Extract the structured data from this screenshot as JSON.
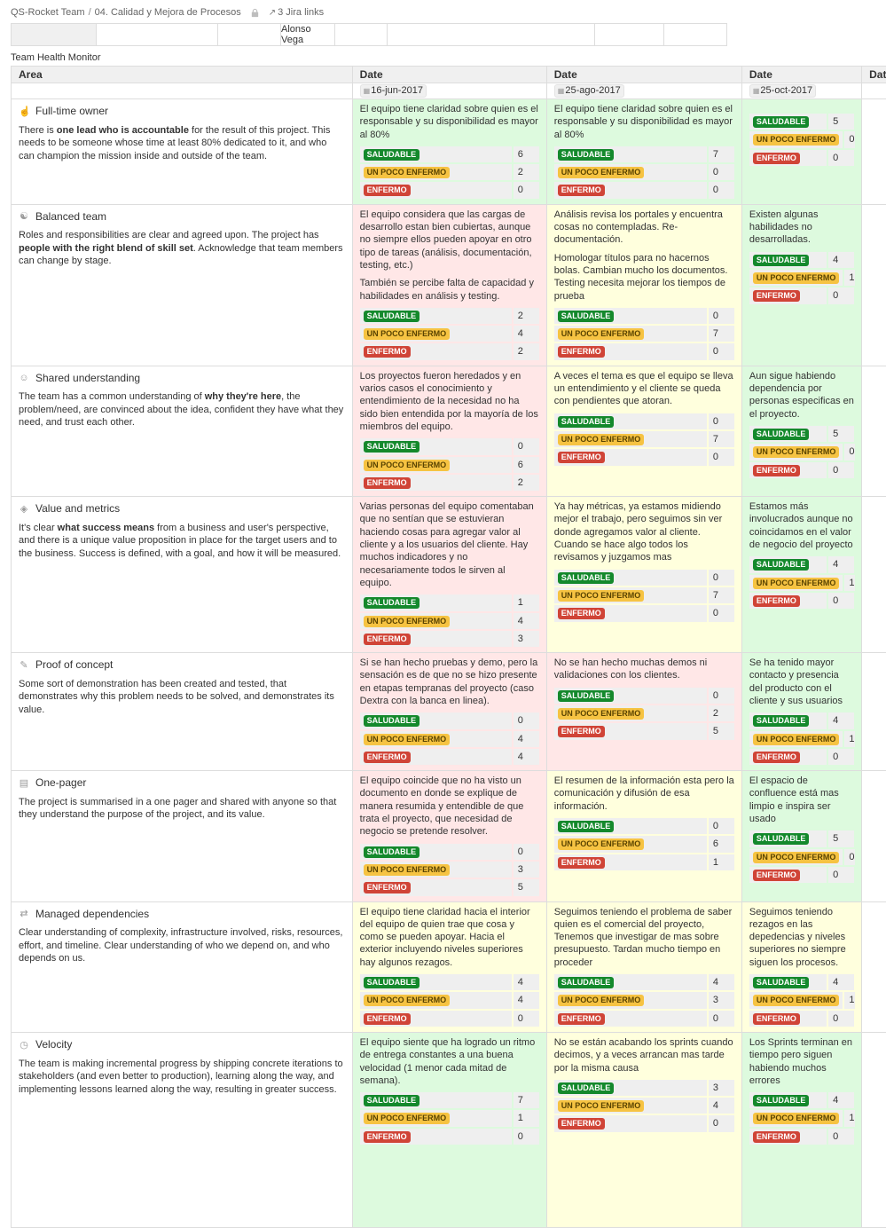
{
  "breadcrumb": {
    "space": "QS-Rocket Team",
    "separator": "/",
    "page": "04. Calidad y Mejora de Procesos",
    "jira_icon": "↗",
    "jira_links_label": "3 Jira links"
  },
  "top_table": {
    "cells": [
      "",
      "",
      "",
      "Alonso Vega",
      "",
      "",
      "",
      ""
    ]
  },
  "section_title": "Team Health Monitor",
  "health_table": {
    "area_header": "Area",
    "date_header": "Date",
    "dates": [
      "16-jun-2017",
      "25-ago-2017",
      "25-oct-2017",
      ""
    ],
    "statuses": [
      {
        "key": "healthy",
        "label": "SALUDABLE"
      },
      {
        "key": "warn",
        "label": "UN POCO ENFERMO"
      },
      {
        "key": "sick",
        "label": "ENFERMO"
      }
    ],
    "colors": {
      "lozenge_healthy_bg": "#14892c",
      "lozenge_healthy_text": "#ffffff",
      "lozenge_warn_bg": "#f6c342",
      "lozenge_warn_text": "#594300",
      "lozenge_sick_bg": "#d04437",
      "lozenge_sick_text": "#ffffff",
      "cell_green": "#ddfade",
      "cell_yellow": "#ffffdd",
      "cell_pink": "#ffe7e7",
      "cell_none": "#ffffff"
    },
    "rows": [
      {
        "icon_name": "full-time-owner-icon",
        "icon_glyph": "☝",
        "title": "Full-time owner",
        "desc_pre": "There is ",
        "desc_bold": "one lead who is accountable",
        "desc_post": " for the result of this project. This needs to be someone whose time at least 80% dedicated to it, and who can champion the mission inside and outside of the team.",
        "cells": [
          {
            "color": "green",
            "paragraphs": [
              "El equipo tiene claridad sobre quien es el responsable y su disponibilidad es mayor al 80%"
            ],
            "counts": [
              6,
              2,
              0
            ]
          },
          {
            "color": "green",
            "paragraphs": [
              "El equipo tiene claridad sobre quien es el responsable y su disponibilidad es mayor al 80%"
            ],
            "counts": [
              7,
              0,
              0
            ]
          },
          {
            "color": "green",
            "paragraphs": [],
            "counts": [
              5,
              0,
              0
            ]
          },
          {
            "color": "none",
            "paragraphs": [],
            "counts": null
          }
        ]
      },
      {
        "icon_name": "balanced-team-icon",
        "icon_glyph": "☯",
        "title": "Balanced team",
        "desc_pre": "Roles and responsibilities are clear and agreed upon. The project has ",
        "desc_bold": "people with the right blend of skill set",
        "desc_post": ". Acknowledge that team members can change by stage.",
        "cells": [
          {
            "color": "pink",
            "paragraphs": [
              "El equipo considera que las cargas de desarrollo estan bien cubiertas, aunque no siempre ellos pueden apoyar en otro tipo de tareas (análisis, documentación, testing, etc.)",
              "También se percibe falta de capacidad y habilidades en análisis y testing."
            ],
            "counts": [
              2,
              4,
              2
            ]
          },
          {
            "color": "yellow",
            "paragraphs": [
              "Análisis revisa los portales y encuentra cosas no contempladas. Re-documentación.",
              "Homologar títulos para no hacernos bolas. Cambian mucho los documentos. Testing necesita mejorar los tiempos de prueba"
            ],
            "counts": [
              0,
              7,
              0
            ]
          },
          {
            "color": "green",
            "paragraphs": [
              "Existen algunas habilidades no desarrolladas."
            ],
            "counts": [
              4,
              1,
              0
            ]
          },
          {
            "color": "none",
            "paragraphs": [],
            "counts": null
          }
        ]
      },
      {
        "icon_name": "shared-understanding-icon",
        "icon_glyph": "☺",
        "title": "Shared understanding",
        "desc_pre": "The team has a common understanding of ",
        "desc_bold": "why they're here",
        "desc_post": ", the problem/need, are convinced about the idea, confident they have what they need, and trust each other.",
        "cells": [
          {
            "color": "pink",
            "paragraphs": [
              "Los proyectos fueron heredados y en varios casos el conocimiento y entendimiento de la necesidad no ha sido bien entendida por la mayoría de los miembros del equipo."
            ],
            "counts": [
              0,
              6,
              2
            ]
          },
          {
            "color": "yellow",
            "paragraphs": [
              "A veces el tema es que el equipo se lleva un entendimiento y el cliente se queda con pendientes que atoran."
            ],
            "counts": [
              0,
              7,
              0
            ]
          },
          {
            "color": "green",
            "paragraphs": [
              "Aun sigue habiendo dependencia por personas especificas en el proyecto."
            ],
            "counts": [
              5,
              0,
              0
            ]
          },
          {
            "color": "none",
            "paragraphs": [],
            "counts": null
          }
        ]
      },
      {
        "icon_name": "value-and-metrics-icon",
        "icon_glyph": "◈",
        "title": "Value and metrics",
        "desc_pre": "It's clear ",
        "desc_bold": "what success means",
        "desc_post": " from a business and user's perspective, and there is a unique value proposition in place for the target users and to the business. Success is defined, with a goal, and how it will be measured.",
        "cells": [
          {
            "color": "pink",
            "paragraphs": [
              "Varias personas del equipo comentaban que no sentían que se estuvieran haciendo cosas para agregar valor al cliente y a los usuarios del cliente. Hay muchos indicadores y no necesariamente todos le sirven al equipo."
            ],
            "counts": [
              1,
              4,
              3
            ]
          },
          {
            "color": "yellow",
            "paragraphs": [
              "Ya hay métricas, ya estamos midiendo mejor el trabajo, pero seguimos sin ver donde agregamos valor al cliente. Cuando se hace algo todos los revisamos y juzgamos mas"
            ],
            "counts": [
              0,
              7,
              0
            ]
          },
          {
            "color": "green",
            "paragraphs": [
              "Estamos más involucrados aunque no coincidamos en el valor de negocio del proyecto"
            ],
            "counts": [
              4,
              1,
              0
            ]
          },
          {
            "color": "none",
            "paragraphs": [],
            "counts": null
          }
        ]
      },
      {
        "icon_name": "proof-of-concept-icon",
        "icon_glyph": "✎",
        "title": "Proof of concept",
        "desc_pre": "Some sort of demonstration has been created and tested, that demonstrates why this problem needs to be solved, and demonstrates its value.",
        "desc_bold": "",
        "desc_post": "",
        "cells": [
          {
            "color": "pink",
            "paragraphs": [
              "Si se han hecho pruebas y demo, pero la sensación es de que no se hizo presente en etapas tempranas del proyecto (caso Dextra con la banca en linea)."
            ],
            "counts": [
              0,
              4,
              4
            ]
          },
          {
            "color": "pink",
            "paragraphs": [
              "No se han hecho muchas demos ni validaciones con los clientes."
            ],
            "counts": [
              0,
              2,
              5
            ]
          },
          {
            "color": "green",
            "paragraphs": [
              "Se ha tenido mayor contacto y presencia del producto con el cliente y sus usuarios"
            ],
            "counts": [
              4,
              1,
              0
            ]
          },
          {
            "color": "none",
            "paragraphs": [],
            "counts": null
          }
        ]
      },
      {
        "icon_name": "one-pager-icon",
        "icon_glyph": "▤",
        "title": "One-pager",
        "desc_pre": "The project is summarised in a one pager and shared with anyone so that they understand the purpose of the project, and its value.",
        "desc_bold": "",
        "desc_post": "",
        "cells": [
          {
            "color": "pink",
            "paragraphs": [
              "El equipo coincide que no ha visto un documento en donde se explique de manera resumida y entendible de que trata el proyecto, que necesidad de negocio se pretende resolver."
            ],
            "counts": [
              0,
              3,
              5
            ]
          },
          {
            "color": "yellow",
            "paragraphs": [
              "El resumen de la información esta pero la comunicación y difusión de esa información."
            ],
            "counts": [
              0,
              6,
              1
            ]
          },
          {
            "color": "green",
            "paragraphs": [
              "El espacio de confluence está mas limpio e inspira ser usado"
            ],
            "counts": [
              5,
              0,
              0
            ]
          },
          {
            "color": "none",
            "paragraphs": [],
            "counts": null
          }
        ]
      },
      {
        "icon_name": "managed-dependencies-icon",
        "icon_glyph": "⇄",
        "title": "Managed dependencies",
        "desc_pre": "Clear understanding of complexity, infrastructure involved, risks, resources, effort, and timeline. Clear understanding of who we depend on, and who depends on us.",
        "desc_bold": "",
        "desc_post": "",
        "cells": [
          {
            "color": "yellow",
            "paragraphs": [
              "El equipo tiene claridad hacia el interior del equipo de quien trae que cosa y como se pueden apoyar. Hacia el exterior incluyendo niveles superiores hay algunos rezagos."
            ],
            "counts": [
              4,
              4,
              0
            ]
          },
          {
            "color": "yellow",
            "paragraphs": [
              "Seguimos teniendo el problema de saber quien es el comercial del proyecto, Tenemos que investigar de mas sobre presupuesto. Tardan mucho tiempo en proceder"
            ],
            "counts": [
              4,
              3,
              0
            ]
          },
          {
            "color": "yellow",
            "paragraphs": [
              "Seguimos teniendo rezagos en las depedencias y niveles superiores no siempre siguen los procesos."
            ],
            "counts": [
              4,
              1,
              0
            ]
          },
          {
            "color": "none",
            "paragraphs": [],
            "counts": null
          }
        ]
      },
      {
        "icon_name": "velocity-icon",
        "icon_glyph": "◷",
        "title": "Velocity",
        "desc_pre": "The team is making incremental progress by shipping concrete iterations to stakeholders (and even better to production), learning along the way, and implementing lessons learned along the way, resulting in greater success.",
        "desc_bold": "",
        "desc_post": "",
        "cells": [
          {
            "color": "green",
            "paragraphs": [
              "El equipo siente que ha logrado un ritmo de entrega constantes a una buena velocidad (1 menor cada mitad de semana)."
            ],
            "counts": [
              7,
              1,
              0
            ]
          },
          {
            "color": "yellow",
            "paragraphs": [
              "No se están acabando los sprints cuando decimos, y a veces arrancan mas tarde por la misma causa"
            ],
            "counts": [
              3,
              4,
              0
            ]
          },
          {
            "color": "green",
            "paragraphs": [
              "Los Sprints terminan en tiempo pero siguen habiendo muchos errores"
            ],
            "counts": [
              4,
              1,
              0
            ]
          },
          {
            "color": "none",
            "paragraphs": [],
            "counts": null
          }
        ]
      }
    ]
  }
}
